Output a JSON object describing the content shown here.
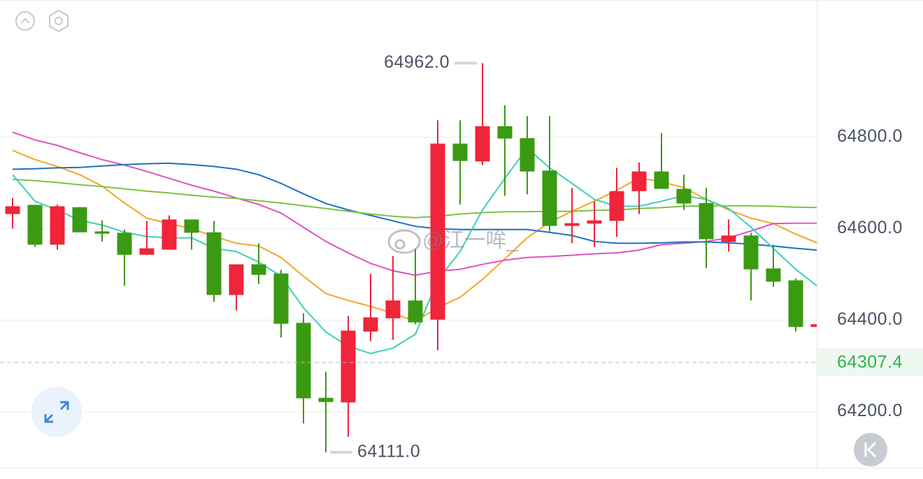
{
  "chart_data": {
    "type": "candlestick",
    "open": [
      64632,
      64652,
      64565,
      64647,
      64594,
      64591,
      64543,
      64554,
      64620,
      64592,
      64455,
      64522,
      64502,
      64394,
      64230,
      64220,
      64375,
      64404,
      64443,
      64401,
      64786,
      64747,
      64824,
      64798,
      64727,
      64606,
      64611,
      64617,
      64682,
      64725,
      64687,
      64656,
      64571,
      64585,
      64513,
      64487,
      64385
    ],
    "high": [
      64667,
      64652,
      64653,
      64647,
      64618,
      64598,
      64617,
      64629,
      64620,
      64617,
      64522,
      64568,
      64510,
      64415,
      64287,
      64409,
      64501,
      64540,
      64556,
      64837,
      64837,
      64962,
      64870,
      64846,
      64846,
      64689,
      64660,
      64733,
      64745,
      64809,
      64718,
      64689,
      64620,
      64591,
      64565,
      64491,
      64421
    ],
    "low": [
      64600,
      64560,
      64554,
      64592,
      64572,
      64475,
      64543,
      64554,
      64554,
      64440,
      64421,
      64479,
      64362,
      64174,
      64111,
      64145,
      64354,
      64357,
      64391,
      64334,
      64653,
      64739,
      64672,
      64675,
      64594,
      64568,
      64560,
      64582,
      64632,
      64687,
      64641,
      64514,
      64550,
      64443,
      64473,
      64375,
      64343
    ],
    "close": [
      64649,
      64565,
      64649,
      64592,
      64589,
      64543,
      64557,
      64620,
      64591,
      64455,
      64522,
      64499,
      64392,
      64229,
      64221,
      64377,
      64406,
      64443,
      64395,
      64786,
      64748,
      64824,
      64797,
      64725,
      64606,
      64612,
      64618,
      64682,
      64725,
      64687,
      64655,
      64577,
      64585,
      64511,
      64484,
      64385,
      64391
    ],
    "up_color": "#f0243a",
    "down_color": "#3a9a12",
    "ma_lines": [
      {
        "color": "#f5a623",
        "values": [
          64771,
          64751,
          64736,
          64718,
          64693,
          64656,
          64623,
          64611,
          64600,
          64583,
          64568,
          64562,
          64537,
          64496,
          64458,
          64443,
          64430,
          64415,
          64397,
          64427,
          64450,
          64489,
          64534,
          64580,
          64614,
          64638,
          64660,
          64684,
          64711,
          64702,
          64690,
          64664,
          64641,
          64623,
          64611,
          64588,
          64568
        ]
      },
      {
        "color": "#e052c0",
        "values": [
          64811,
          64794,
          64782,
          64766,
          64751,
          64739,
          64725,
          64710,
          64695,
          64682,
          64667,
          64653,
          64634,
          64603,
          64572,
          64547,
          64524,
          64508,
          64498,
          64507,
          64511,
          64522,
          64531,
          64537,
          64539,
          64542,
          64545,
          64547,
          64553,
          64565,
          64568,
          64572,
          64580,
          64595,
          64611,
          64612,
          64612
        ]
      },
      {
        "color": "#1f6fc0",
        "values": [
          64730,
          64731,
          64733,
          64734,
          64737,
          64740,
          64742,
          64743,
          64740,
          64736,
          64730,
          64718,
          64699,
          64676,
          64655,
          64641,
          64629,
          64617,
          64605,
          64600,
          64598,
          64598,
          64598,
          64598,
          64592,
          64585,
          64572,
          64568,
          64568,
          64569,
          64571,
          64571,
          64569,
          64566,
          64562,
          64557,
          64553
        ]
      },
      {
        "color": "#7cc242",
        "values": [
          64708,
          64705,
          64701,
          64696,
          64692,
          64687,
          64682,
          64678,
          64673,
          64669,
          64666,
          64661,
          64656,
          64650,
          64644,
          64638,
          64632,
          64627,
          64624,
          64627,
          64632,
          64635,
          64637,
          64637,
          64638,
          64638,
          64640,
          64641,
          64644,
          64646,
          64649,
          64650,
          64650,
          64650,
          64649,
          64647,
          64646
        ]
      },
      {
        "color": "#3ccfb8",
        "values": [
          64718,
          64660,
          64641,
          64618,
          64608,
          64592,
          64583,
          64580,
          64580,
          64557,
          64550,
          64527,
          64496,
          64427,
          64374,
          64343,
          64327,
          64339,
          64369,
          64488,
          64550,
          64641,
          64710,
          64776,
          64733,
          64699,
          64664,
          64649,
          64649,
          64660,
          64672,
          64664,
          64644,
          64603,
          64557,
          64511,
          64473
        ]
      }
    ],
    "ylim": [
      64077,
      65100
    ],
    "yticks": [
      {
        "value": 64200,
        "label": "64200.0"
      },
      {
        "value": 64400,
        "label": "64400.0"
      },
      {
        "value": 64600,
        "label": "64600.0"
      },
      {
        "value": 64800,
        "label": "64800.0"
      }
    ],
    "grid": true,
    "high_label": {
      "value": 64962,
      "label": "64962.0"
    },
    "low_label": {
      "value": 64111,
      "label": "64111.0"
    },
    "last_price": 64307.4,
    "last_price_color": "#2eb24a",
    "watermark": "@江一哞_"
  }
}
